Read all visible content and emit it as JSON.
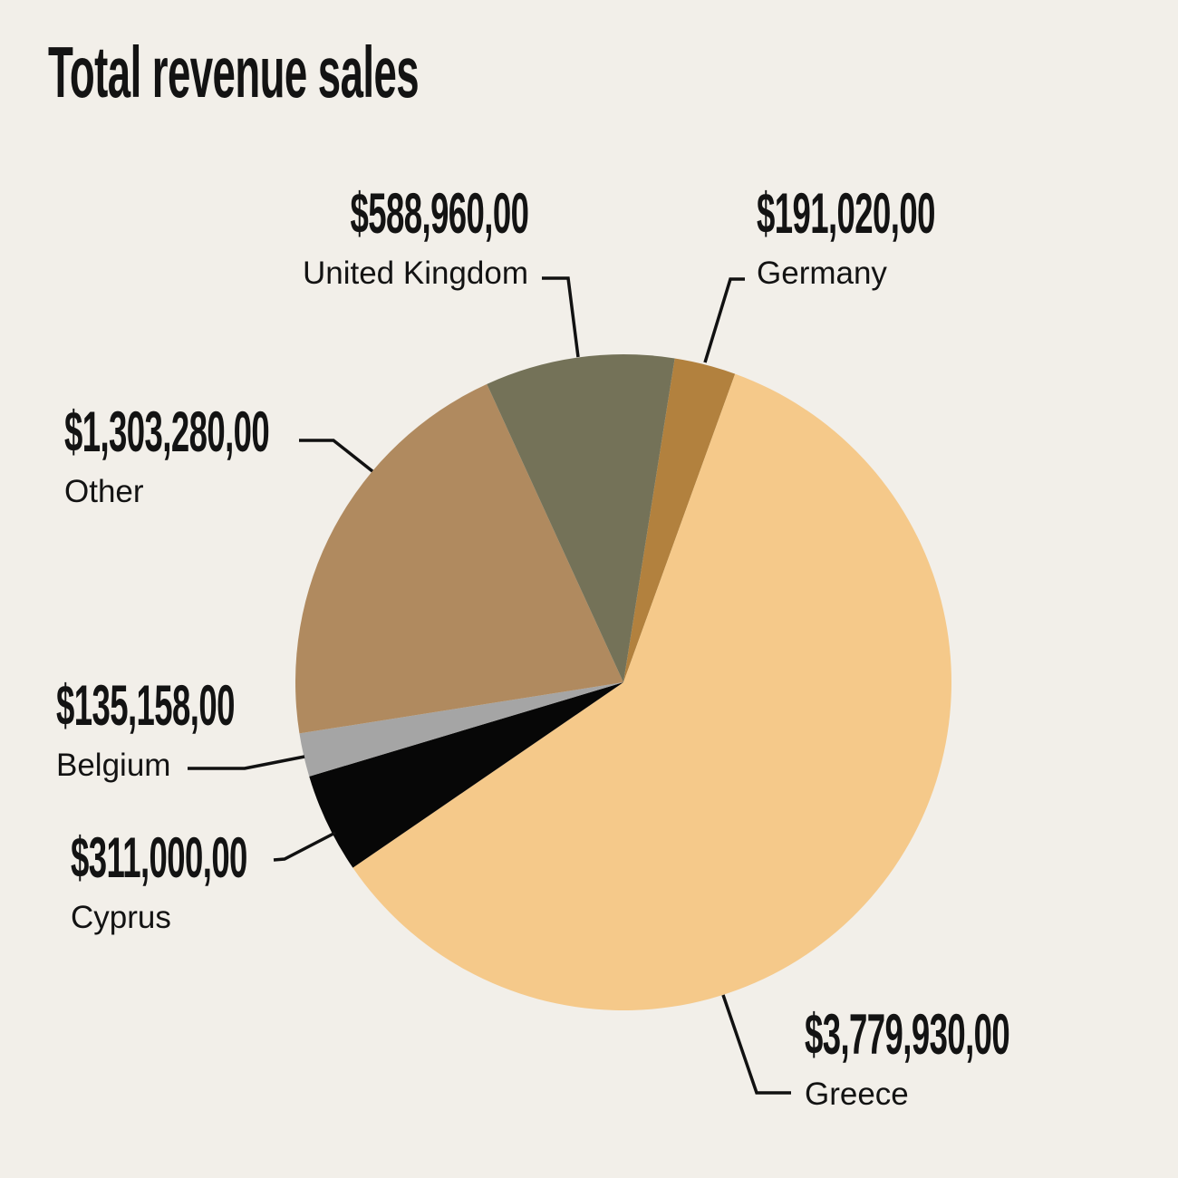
{
  "title": "Total revenue sales",
  "background_color": "#F2EFE9",
  "text_color": "#131313",
  "leader_line_color": "#111111",
  "chart_data": {
    "type": "pie",
    "title": "Total revenue sales",
    "currency": "$",
    "legend_position": "callout-labels",
    "start_angle_deg_clockwise_from_top": 9,
    "slices": [
      {
        "name": "Germany",
        "value": 191020,
        "value_label": "$191,020,00",
        "color": "#B2813E"
      },
      {
        "name": "Greece",
        "value": 3779930,
        "value_label": "$3,779,930,00",
        "color": "#F5C98A"
      },
      {
        "name": "Cyprus",
        "value": 311000,
        "value_label": "$311,000,00",
        "color": "#070707"
      },
      {
        "name": "Belgium",
        "value": 135158,
        "value_label": "$135,158,00",
        "color": "#A5A5A5"
      },
      {
        "name": "Other",
        "value": 1303280,
        "value_label": "$1,303,280,00",
        "color": "#B08A5F"
      },
      {
        "name": "United Kingdom",
        "value": 588960,
        "value_label": "$588,960,00",
        "color": "#747258"
      }
    ]
  }
}
